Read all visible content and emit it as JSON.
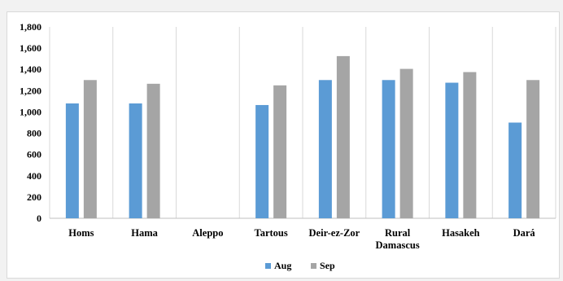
{
  "chart_data": {
    "type": "bar",
    "categories": [
      "Homs",
      "Hama",
      "Aleppo",
      "Tartous",
      "Deir-ez-Zor",
      "Rural Damascus",
      "Hasakeh",
      "Dará"
    ],
    "series": [
      {
        "name": "Aug",
        "color": "#5b9bd5",
        "values": [
          1080,
          1080,
          null,
          1065,
          1300,
          1300,
          1275,
          900
        ]
      },
      {
        "name": "Sep",
        "color": "#a5a5a5",
        "values": [
          1300,
          1265,
          null,
          1250,
          1525,
          1405,
          1375,
          1300
        ]
      }
    ],
    "yticks": [
      "1,800",
      "1,600",
      "1,400",
      "1,200",
      "1,000",
      "800",
      "600",
      "400",
      "200",
      "0"
    ],
    "ylim": [
      0,
      1800
    ],
    "grid": "vertical category separators",
    "legend": "bottom-center"
  }
}
